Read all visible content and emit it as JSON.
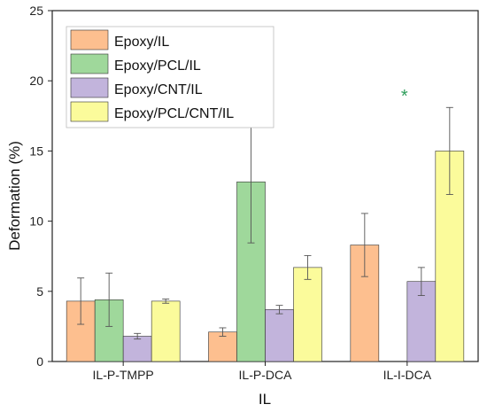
{
  "chart_data": {
    "type": "bar",
    "xlabel": "IL",
    "ylabel": "Deformation (%)",
    "ylim": [
      0,
      25
    ],
    "yticks": [
      "0",
      "5",
      "10",
      "15",
      "20",
      "25"
    ],
    "categories": [
      "IL-P-TMPP",
      "IL-P-DCA",
      "IL-I-DCA"
    ],
    "legend_position": "top-left",
    "series": [
      {
        "name": "Epoxy/IL",
        "color": "#fdbf8f",
        "values": [
          4.3,
          2.1,
          8.3
        ],
        "errors": [
          1.65,
          0.3,
          2.25
        ]
      },
      {
        "name": "Epoxy/PCL/IL",
        "color": "#9fd89b",
        "values": [
          4.4,
          12.8,
          null
        ],
        "errors": [
          1.9,
          4.35,
          null
        ]
      },
      {
        "name": "Epoxy/CNT/IL",
        "color": "#c2b4dc",
        "values": [
          1.8,
          3.7,
          5.7
        ],
        "errors": [
          0.2,
          0.3,
          1.0
        ]
      },
      {
        "name": "Epoxy/PCL/CNT/IL",
        "color": "#fbfb9b",
        "values": [
          4.3,
          6.7,
          15.0
        ],
        "errors": [
          0.15,
          0.85,
          3.1
        ]
      }
    ],
    "annotations": [
      {
        "text": "*",
        "category": "IL-I-DCA",
        "y": 19,
        "color": "#2e9e5b"
      }
    ]
  }
}
